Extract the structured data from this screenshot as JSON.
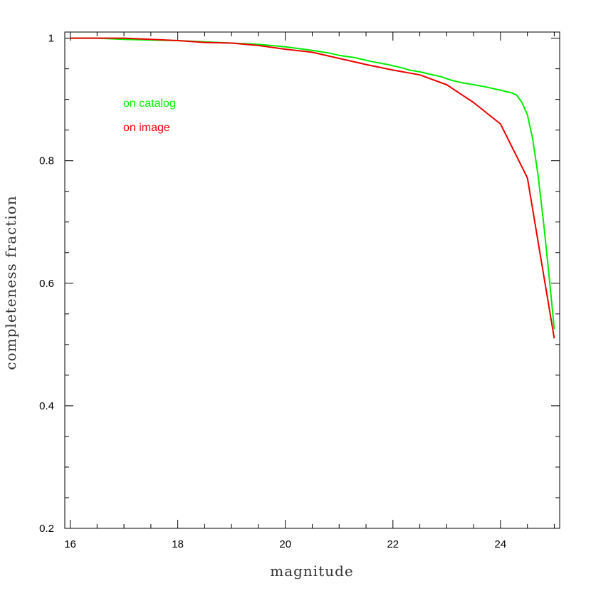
{
  "chart_data": {
    "type": "line",
    "title": "",
    "xlabel": "magnitude",
    "ylabel": "completeness fraction",
    "xlim": [
      15.9,
      25.1
    ],
    "ylim": [
      0.2,
      1.01
    ],
    "x_ticks": [
      16,
      18,
      20,
      22,
      24
    ],
    "x_tick_labels": [
      "16",
      "18",
      "20",
      "22",
      "24"
    ],
    "x_minor_step": 0.5,
    "y_ticks": [
      0.2,
      0.4,
      0.6,
      0.8,
      1.0
    ],
    "y_tick_labels": [
      "0.2",
      "0.4",
      "0.6",
      "0.8",
      "1"
    ],
    "y_minor_step": 0.05,
    "grid": false,
    "legend_position": "top-left",
    "series": [
      {
        "name": "on catalog",
        "color": "#00ee00",
        "x": [
          16.0,
          16.5,
          17.0,
          17.5,
          18.0,
          18.5,
          19.0,
          19.5,
          20.0,
          20.5,
          20.8,
          21.0,
          21.3,
          21.6,
          21.9,
          22.0,
          22.2,
          22.3,
          22.5,
          22.7,
          22.9,
          23.0,
          23.1,
          23.2,
          23.3,
          23.5,
          23.7,
          23.8,
          23.9,
          24.0,
          24.1,
          24.2,
          24.3,
          24.4,
          24.5,
          24.6,
          24.7,
          24.8,
          24.9,
          25.0
        ],
        "y": [
          1.0,
          1.0,
          0.998,
          0.997,
          0.996,
          0.994,
          0.992,
          0.99,
          0.986,
          0.98,
          0.976,
          0.972,
          0.968,
          0.962,
          0.957,
          0.955,
          0.951,
          0.948,
          0.945,
          0.941,
          0.937,
          0.934,
          0.931,
          0.929,
          0.927,
          0.924,
          0.921,
          0.919,
          0.917,
          0.915,
          0.913,
          0.911,
          0.907,
          0.895,
          0.875,
          0.835,
          0.775,
          0.7,
          0.615,
          0.525
        ]
      },
      {
        "name": "on image",
        "color": "#ee0000",
        "x": [
          16.0,
          16.5,
          17.0,
          17.5,
          18.0,
          18.5,
          19.0,
          19.5,
          20.0,
          20.5,
          21.0,
          21.5,
          22.0,
          22.5,
          23.0,
          23.5,
          24.0,
          24.5,
          25.0
        ],
        "y": [
          1.0,
          1.0,
          1.0,
          0.998,
          0.996,
          0.993,
          0.992,
          0.988,
          0.982,
          0.977,
          0.967,
          0.957,
          0.948,
          0.94,
          0.924,
          0.895,
          0.86,
          0.772,
          0.51
        ]
      }
    ]
  }
}
